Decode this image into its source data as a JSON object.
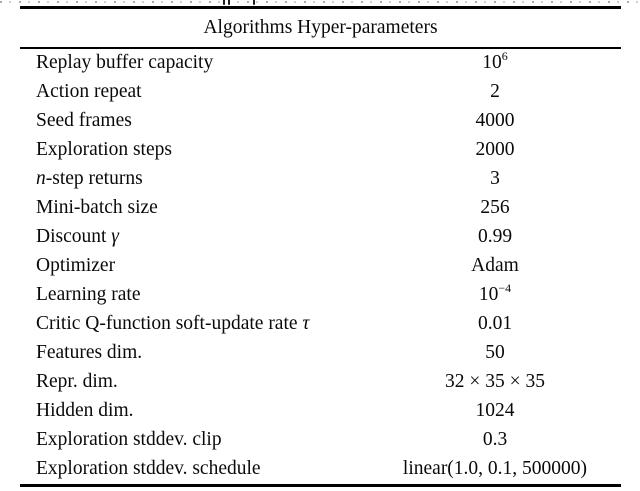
{
  "page": {
    "background": "#ffffff",
    "text_color": "#0a0a0a",
    "rule_color": "#000000"
  },
  "table": {
    "title": "Algorithms Hyper-parameters",
    "rows": [
      {
        "label": "Replay buffer capacity",
        "value": "10",
        "value_sup": "6"
      },
      {
        "label": "Action repeat",
        "value": "2"
      },
      {
        "label": "Seed frames",
        "value": "4000"
      },
      {
        "label": "Exploration steps",
        "value": "2000"
      },
      {
        "label_italic_pre": "n",
        "label": "-step returns",
        "value": "3"
      },
      {
        "label": "Mini-batch size",
        "value": "256"
      },
      {
        "label": "Discount ",
        "label_italic_post": "γ",
        "value": "0.99"
      },
      {
        "label": "Optimizer",
        "value": "Adam"
      },
      {
        "label": "Learning rate",
        "value": "10",
        "value_sup": "−4"
      },
      {
        "label": "Critic Q-function soft-update rate ",
        "label_italic_post": "τ",
        "value": "0.01"
      },
      {
        "label": "Features dim.",
        "value": "50"
      },
      {
        "label": "Repr. dim.",
        "value": "32 × 35 × 35"
      },
      {
        "label": "Hidden dim.",
        "value": "1024"
      },
      {
        "label": "Exploration stddev. clip",
        "value": "0.3"
      },
      {
        "label": "Exploration stddev. schedule",
        "value": "linear(1.0, 0.1, 500000)"
      }
    ]
  }
}
